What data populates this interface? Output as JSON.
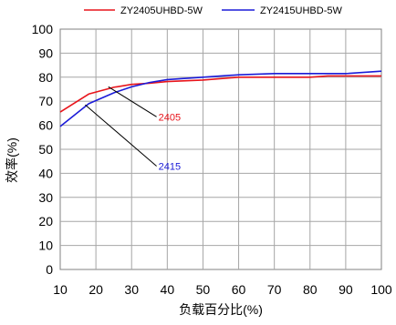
{
  "chart_data": {
    "type": "line",
    "xlabel": "负载百分比(%)",
    "ylabel": "效率(%)",
    "xlim": [
      10,
      100
    ],
    "ylim": [
      0,
      100
    ],
    "x_ticks": [
      10,
      20,
      30,
      40,
      50,
      60,
      70,
      80,
      90,
      100
    ],
    "y_ticks": [
      0,
      10,
      20,
      30,
      40,
      50,
      60,
      70,
      80,
      90,
      100
    ],
    "grid": true,
    "legend_position": "top",
    "series": [
      {
        "name": "ZY2405UHBD-5W",
        "color": "#e8141b",
        "x": [
          10,
          18,
          25,
          30,
          35,
          40,
          50,
          60,
          70,
          80,
          85,
          90,
          100
        ],
        "y": [
          65.5,
          73,
          75.8,
          77,
          77.5,
          78.2,
          78.8,
          80,
          80,
          80,
          80.5,
          80.5,
          80.5
        ]
      },
      {
        "name": "ZY2415UHBD-5W",
        "color": "#1b1bd8",
        "x": [
          10,
          18,
          25,
          30,
          35,
          40,
          50,
          60,
          70,
          80,
          90,
          100
        ],
        "y": [
          59.5,
          69,
          73.5,
          76,
          77.8,
          79,
          80,
          81,
          81.5,
          81.5,
          81.5,
          82.5
        ]
      }
    ],
    "annotations": [
      {
        "text": "2405",
        "color": "#e8141b",
        "from": [
          23.5,
          76
        ],
        "to": [
          37,
          63.5
        ]
      },
      {
        "text": "2415",
        "color": "#1b1bd8",
        "from": [
          17,
          68.5
        ],
        "to": [
          37,
          43
        ]
      }
    ]
  }
}
